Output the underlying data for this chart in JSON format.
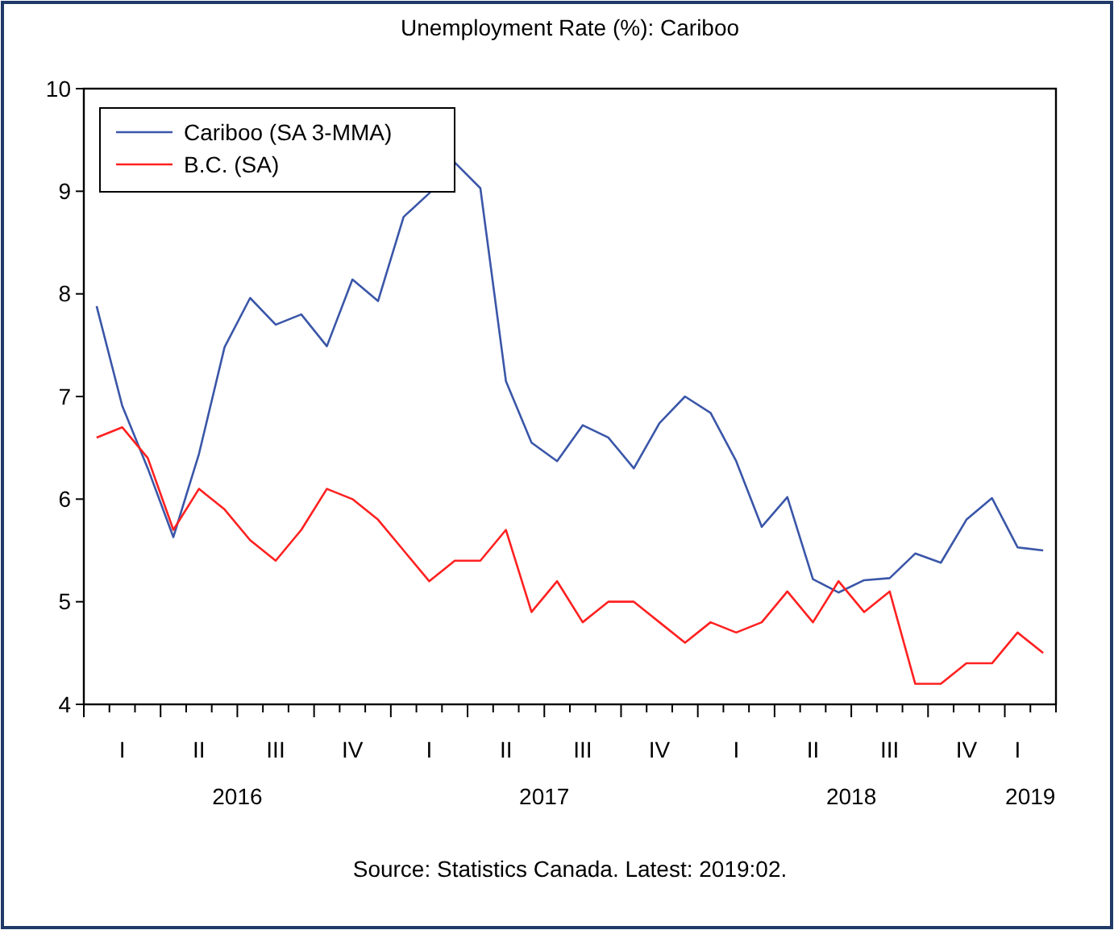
{
  "chart_data": {
    "type": "line",
    "title": "Unemployment Rate (%): Cariboo",
    "categories": [
      null,
      "I",
      null,
      null,
      "II",
      null,
      null,
      "III",
      null,
      null,
      "IV",
      null,
      null,
      "I",
      null,
      null,
      "II",
      null,
      null,
      "III",
      null,
      null,
      "IV",
      null,
      null,
      "I",
      null,
      null,
      "II",
      null,
      null,
      "III",
      null,
      null,
      "IV",
      null,
      "I",
      null
    ],
    "series": [
      {
        "name": "Cariboo (SA 3-MMA)",
        "color": "#3a56a8",
        "values": [
          7.88,
          6.91,
          6.3,
          5.63,
          6.44,
          7.48,
          7.96,
          7.7,
          7.8,
          7.49,
          8.14,
          7.93,
          8.75,
          8.98,
          9.28,
          9.03,
          7.15,
          6.55,
          6.37,
          6.72,
          6.6,
          6.3,
          6.74,
          7.0,
          6.84,
          6.37,
          5.73,
          6.02,
          5.22,
          5.09,
          5.21,
          5.23,
          5.47,
          5.38,
          5.8,
          6.01,
          5.53,
          5.5
        ]
      },
      {
        "name": "B.C. (SA)",
        "color": "#ff2020",
        "values": [
          6.6,
          6.7,
          6.4,
          5.7,
          6.1,
          5.9,
          5.6,
          5.4,
          5.7,
          6.1,
          6.0,
          5.8,
          5.5,
          5.2,
          5.4,
          5.4,
          5.7,
          4.9,
          5.2,
          4.8,
          5.0,
          5.0,
          4.8,
          4.6,
          4.8,
          4.7,
          4.8,
          5.1,
          4.8,
          5.2,
          4.9,
          5.1,
          4.2,
          4.2,
          4.4,
          4.4,
          4.7,
          4.5
        ]
      }
    ],
    "ylim": [
      4,
      10
    ],
    "yticks": [
      4,
      5,
      6,
      7,
      8,
      9,
      10
    ],
    "grid": false,
    "legend": "top left",
    "line_style": "solid",
    "marker": "none",
    "annotations": [
      "2016",
      "2017",
      "2018",
      "2019",
      "Source: Statistics Canada. Latest: 2019:02."
    ]
  }
}
